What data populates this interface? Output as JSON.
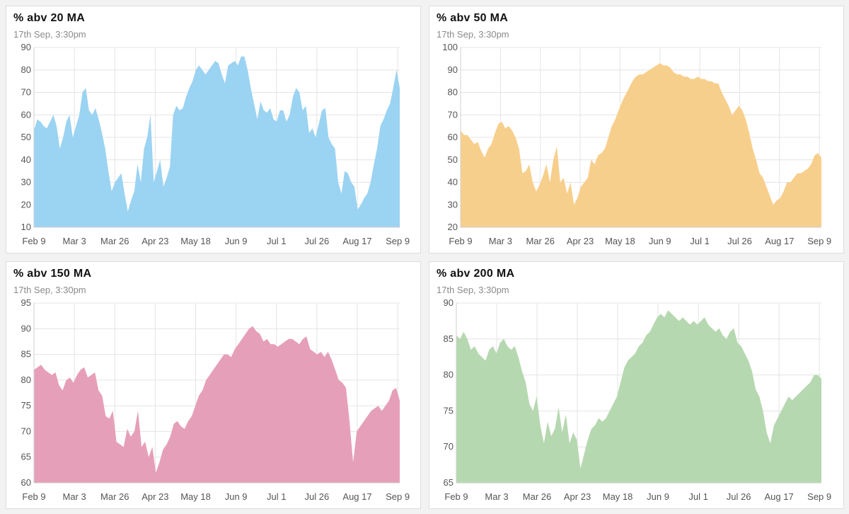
{
  "chart_data": [
    {
      "type": "area",
      "title": "% abv 20 MA",
      "subtitle": "17th Sep, 3:30pm",
      "color": "#9bd3f2",
      "x_ticks": [
        "Feb 9",
        "Mar 3",
        "Mar 26",
        "Apr 23",
        "May 18",
        "Jun 9",
        "Jul 1",
        "Jul 26",
        "Aug 17",
        "Sep 9"
      ],
      "y_ticks": [
        10,
        20,
        30,
        40,
        50,
        60,
        70,
        80,
        90
      ],
      "ylim": [
        10,
        90
      ],
      "grid": true,
      "values": [
        53,
        58,
        57,
        55,
        54,
        57,
        60,
        55,
        45,
        50,
        57,
        60,
        50,
        55,
        60,
        70,
        72,
        62,
        60,
        63,
        58,
        52,
        45,
        35,
        26,
        30,
        32,
        34,
        25,
        17,
        22,
        26,
        38,
        30,
        45,
        50,
        60,
        30,
        35,
        40,
        28,
        32,
        37,
        60,
        64,
        62,
        63,
        68,
        72,
        75,
        80,
        82,
        80,
        78,
        80,
        82,
        84,
        83,
        78,
        74,
        82,
        83,
        84,
        82,
        86,
        86,
        80,
        72,
        65,
        58,
        66,
        62,
        61,
        63,
        58,
        57,
        62,
        62,
        57,
        60,
        68,
        72,
        70,
        62,
        64,
        52,
        54,
        50,
        56,
        62,
        63,
        50,
        47,
        45,
        30,
        25,
        35,
        34,
        30,
        28,
        18,
        20,
        23,
        25,
        30,
        38,
        45,
        55,
        58,
        62,
        65,
        72,
        80,
        72
      ]
    },
    {
      "type": "area",
      "title": "% abv 50 MA",
      "subtitle": "17th Sep, 3:30pm",
      "color": "#f7cf8c",
      "x_ticks": [
        "Feb 9",
        "Mar 3",
        "Mar 26",
        "Apr 23",
        "May 18",
        "Jun 9",
        "Jul 1",
        "Jul 26",
        "Aug 17",
        "Sep 9"
      ],
      "y_ticks": [
        20,
        30,
        40,
        50,
        60,
        70,
        80,
        90,
        100
      ],
      "ylim": [
        20,
        100
      ],
      "grid": true,
      "values": [
        63,
        61,
        61,
        59,
        57,
        58,
        54,
        51,
        55,
        57,
        62,
        66,
        67,
        64,
        65,
        63,
        60,
        55,
        44,
        45,
        48,
        40,
        36,
        39,
        43,
        48,
        40,
        50,
        56,
        40,
        42,
        35,
        40,
        30,
        33,
        38,
        40,
        42,
        50,
        48,
        52,
        53,
        55,
        60,
        65,
        68,
        72,
        76,
        79,
        82,
        85,
        87,
        88,
        88,
        89,
        90,
        91,
        92,
        93,
        92,
        92,
        91,
        89,
        88,
        88,
        87,
        87,
        86,
        86,
        87,
        86,
        86,
        85,
        85,
        84,
        84,
        80,
        77,
        74,
        70,
        72,
        74,
        72,
        68,
        62,
        55,
        50,
        44,
        42,
        38,
        34,
        30,
        32,
        33,
        36,
        40,
        40,
        42,
        44,
        44,
        45,
        46,
        48,
        52,
        53,
        51
      ]
    },
    {
      "type": "area",
      "title": "% abv 150 MA",
      "subtitle": "17th Sep, 3:30pm",
      "color": "#e69fb8",
      "x_ticks": [
        "Feb 9",
        "Mar 3",
        "Mar 26",
        "Apr 23",
        "May 18",
        "Jun 9",
        "Jul 1",
        "Jul 26",
        "Aug 17",
        "Sep 9"
      ],
      "y_ticks": [
        60,
        65,
        70,
        75,
        80,
        85,
        90,
        95
      ],
      "ylim": [
        60,
        95
      ],
      "grid": true,
      "values": [
        82,
        82.5,
        83,
        82,
        81.5,
        81,
        81.5,
        79,
        78,
        80,
        80.5,
        79.5,
        81,
        82,
        82.5,
        80.5,
        81,
        81.5,
        78,
        77,
        73,
        72.5,
        74,
        68,
        67.5,
        67,
        70.5,
        69,
        70,
        74,
        67,
        68,
        65,
        67,
        62,
        64,
        66.5,
        67.5,
        69,
        71.5,
        72,
        71,
        70.5,
        72,
        73,
        75,
        77,
        78,
        80,
        81,
        82,
        83,
        84,
        85,
        85,
        84.5,
        86,
        87,
        88,
        89,
        90,
        90.5,
        89.5,
        89,
        87.5,
        88,
        87,
        87,
        86.5,
        87,
        87.5,
        88,
        88,
        87.5,
        87,
        88,
        88.5,
        86,
        85.5,
        85,
        85.5,
        84.5,
        85.5,
        84,
        82,
        80,
        79.5,
        78.5,
        72,
        64,
        70,
        71,
        72,
        73,
        74,
        74.5,
        75,
        74,
        75,
        76,
        78,
        78.5,
        76
      ]
    },
    {
      "type": "area",
      "title": "% abv 200 MA",
      "subtitle": "17th Sep, 3:30pm",
      "color": "#b6d8b0",
      "x_ticks": [
        "Feb 9",
        "Mar 3",
        "Mar 26",
        "Apr 23",
        "May 18",
        "Jun 9",
        "Jul 1",
        "Jul 26",
        "Aug 17",
        "Sep 9"
      ],
      "y_ticks": [
        65,
        70,
        75,
        80,
        85,
        90
      ],
      "ylim": [
        65,
        90
      ],
      "grid": true,
      "values": [
        85.5,
        85,
        86,
        85,
        83.5,
        84,
        83,
        82.5,
        82,
        83.5,
        84,
        83,
        84.5,
        85,
        84,
        83.5,
        84,
        82.5,
        80.5,
        79,
        76,
        75,
        77,
        73,
        70.5,
        73.5,
        71.5,
        72.5,
        75.5,
        72,
        74.5,
        70.5,
        72,
        71,
        67,
        69,
        71,
        72.5,
        73,
        74,
        73.5,
        74,
        75,
        76,
        77,
        79,
        81,
        82,
        82.5,
        83,
        84,
        84.5,
        85.5,
        86,
        87,
        88,
        88.5,
        88,
        89,
        88.5,
        88,
        87.5,
        88,
        87.5,
        87,
        87.5,
        87,
        87.5,
        88,
        87,
        86.5,
        86,
        86.5,
        85.5,
        85,
        86,
        86.5,
        84.5,
        84,
        83,
        82,
        80.5,
        78,
        77,
        75,
        72,
        70.5,
        73,
        74,
        75,
        76,
        77,
        76.5,
        77,
        77.5,
        78,
        78.5,
        79,
        80,
        80,
        79.5
      ]
    }
  ]
}
